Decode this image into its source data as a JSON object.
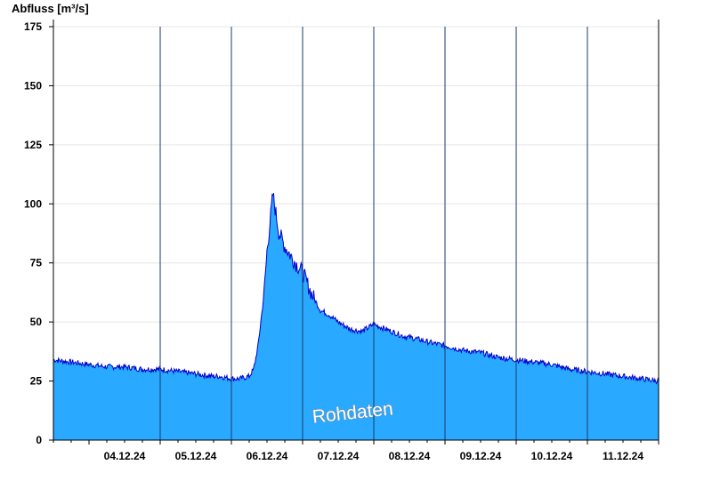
{
  "chart_data": {
    "type": "area",
    "ylabel": "Abfluss [m³/s]",
    "ylim": [
      0,
      178
    ],
    "yticks": [
      0,
      25,
      50,
      75,
      100,
      125,
      150,
      175
    ],
    "xlim": [
      "2024-12-03 12:00",
      "2024-12-11 24:00"
    ],
    "xtick_labels": [
      "04.12.24",
      "05.12.24",
      "06.12.24",
      "07.12.24",
      "08.12.24",
      "09.12.24",
      "10.12.24",
      "11.12.24"
    ],
    "day_boundaries": [
      "05.12.24 00:00",
      "06.12.24 00:00",
      "07.12.24 00:00",
      "08.12.24 00:00",
      "09.12.24 00:00",
      "10.12.24 00:00",
      "11.12.24 00:00"
    ],
    "grid": true,
    "series": [
      {
        "fill_color": "#29a9ff",
        "line_color": "#0000cc",
        "x": [
          "03.12.24 12:00",
          "03.12.24 18:00",
          "04.12.24 00:00",
          "04.12.24 06:00",
          "04.12.24 12:00",
          "04.12.24 18:00",
          "05.12.24 00:00",
          "05.12.24 06:00",
          "05.12.24 12:00",
          "05.12.24 18:00",
          "05.12.24 20:00",
          "06.12.24 00:00",
          "06.12.24 03:00",
          "06.12.24 06:00",
          "06.12.24 07:30",
          "06.12.24 09:00",
          "06.12.24 11:00",
          "06.12.24 12:00",
          "06.12.24 13:00",
          "06.12.24 14:00",
          "06.12.24 14:30",
          "06.12.24 16:00",
          "06.12.24 18:00",
          "06.12.24 21:00",
          "07.12.24 00:00",
          "07.12.24 03:00",
          "07.12.24 06:00",
          "07.12.24 09:00",
          "07.12.24 12:00",
          "07.12.24 16:00",
          "07.12.24 20:00",
          "08.12.24 00:00",
          "08.12.24 06:00",
          "08.12.24 10:00",
          "08.12.24 14:00",
          "08.12.24 20:00",
          "09.12.24 00:00",
          "09.12.24 06:00",
          "09.12.24 12:00",
          "09.12.24 18:00",
          "10.12.24 00:00",
          "10.12.24 06:00",
          "10.12.24 12:00",
          "10.12.24 18:00",
          "11.12.24 00:00",
          "11.12.24 06:00",
          "11.12.24 12:00",
          "11.12.24 18:00",
          "11.12.24 24:00"
        ],
        "values": [
          34,
          33,
          32,
          31,
          31,
          30,
          30,
          29,
          28,
          27,
          27,
          26,
          26,
          27,
          30,
          40,
          62,
          80,
          92,
          104,
          100,
          88,
          82,
          76,
          71,
          62,
          55,
          53,
          50,
          47,
          46,
          49,
          46,
          44,
          43,
          41,
          40,
          38,
          37,
          35,
          34,
          33,
          32,
          30,
          29,
          28,
          27,
          26,
          25
        ]
      }
    ],
    "annotation": "Rohdaten"
  }
}
